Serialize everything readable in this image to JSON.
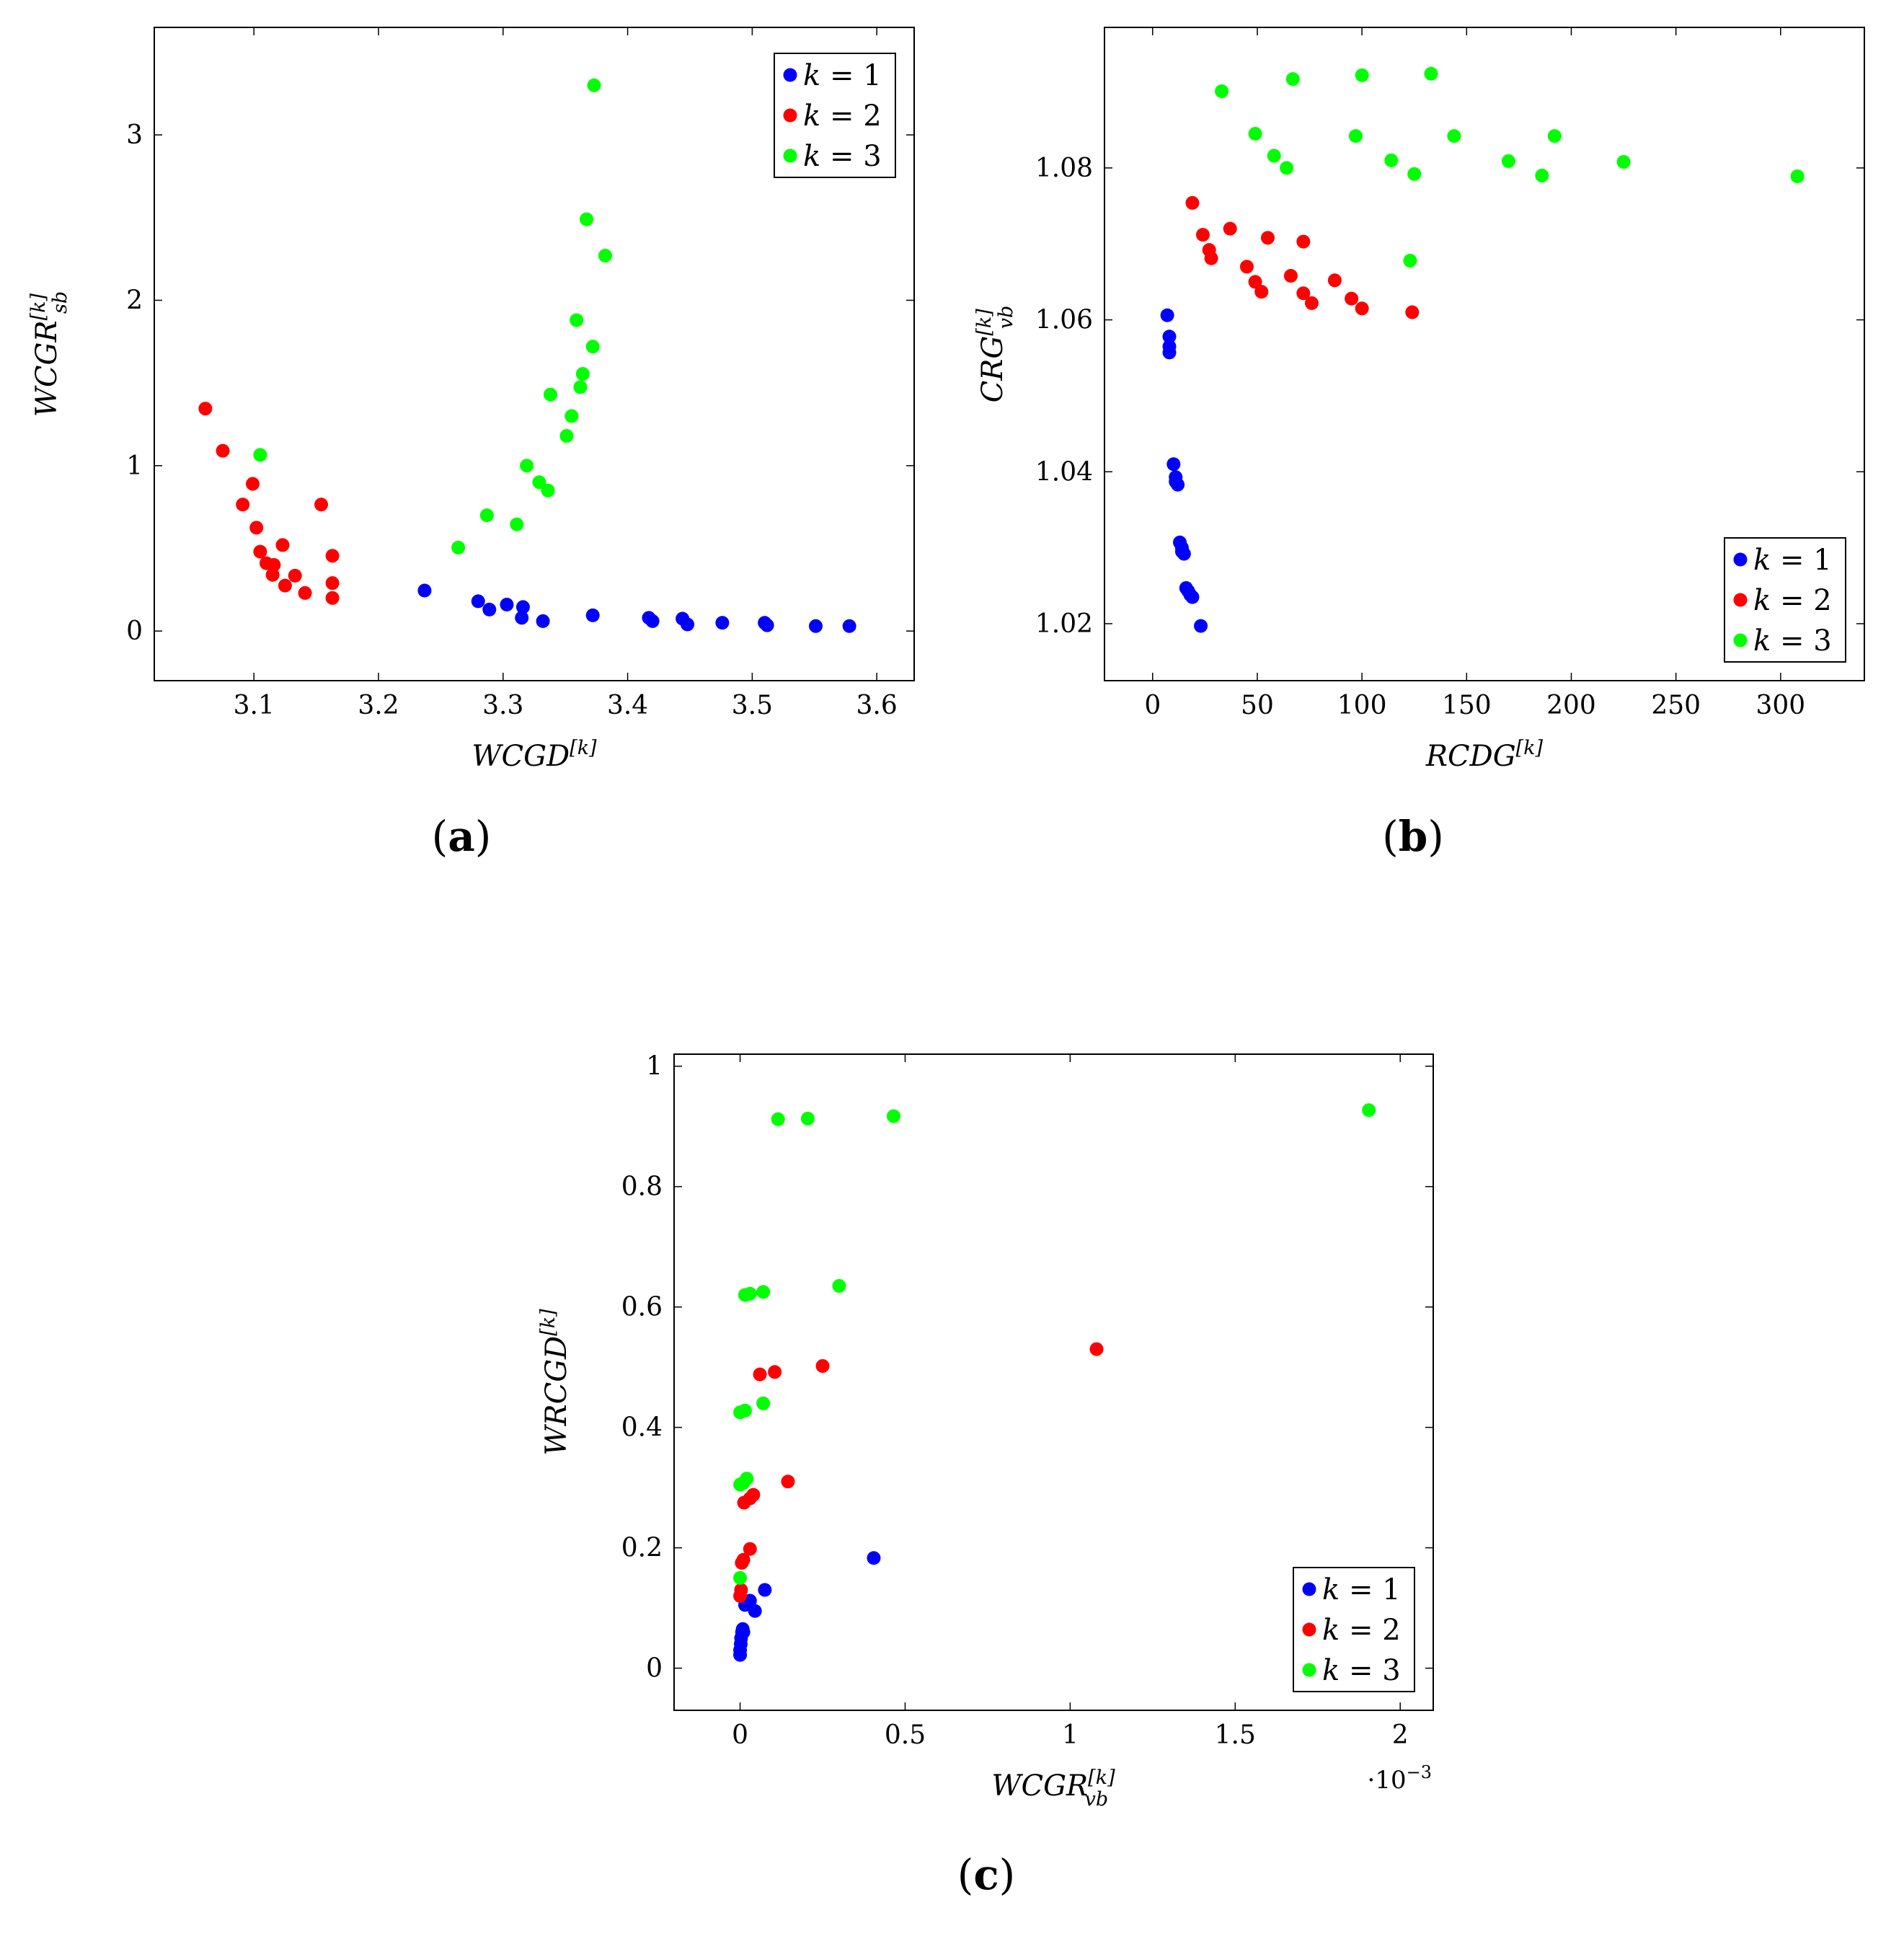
{
  "colors": {
    "k1": "#0000ff",
    "k2": "#ff0000",
    "k3": "#00ff00"
  },
  "legend": {
    "var": "k",
    "entries": [
      {
        "label": "k = 1",
        "value": "1",
        "color": "#0000ff"
      },
      {
        "label": "k = 2",
        "value": "2",
        "color": "#ff0000"
      },
      {
        "label": "k = 3",
        "value": "3",
        "color": "#00ff00"
      }
    ]
  },
  "chart_data": [
    {
      "id": "a",
      "type": "scatter",
      "caption": "(a)",
      "caption_letter": "a",
      "xlabel": {
        "main": "WCGD",
        "sup": "[k]"
      },
      "ylabel": {
        "main": "WCGR",
        "sup": "[k]",
        "sub": "sb"
      },
      "xlim": [
        3.02,
        3.63
      ],
      "ylim": [
        -0.3,
        3.65
      ],
      "xticks": [
        3.1,
        3.2,
        3.3,
        3.4,
        3.5,
        3.6
      ],
      "xtick_labels": [
        "3.1",
        "3.2",
        "3.3",
        "3.4",
        "3.5",
        "3.6"
      ],
      "yticks": [
        0,
        1,
        2,
        3
      ],
      "ytick_labels": [
        "0",
        "1",
        "2",
        "3"
      ],
      "legend_position": "top-right",
      "series": [
        {
          "name": "k = 1",
          "color": "#0000ff",
          "points": [
            [
              3.237,
              0.245
            ],
            [
              3.28,
              0.18
            ],
            [
              3.289,
              0.13
            ],
            [
              3.303,
              0.16
            ],
            [
              3.316,
              0.145
            ],
            [
              3.315,
              0.08
            ],
            [
              3.332,
              0.06
            ],
            [
              3.372,
              0.095
            ],
            [
              3.417,
              0.08
            ],
            [
              3.42,
              0.06
            ],
            [
              3.444,
              0.075
            ],
            [
              3.448,
              0.04
            ],
            [
              3.476,
              0.05
            ],
            [
              3.51,
              0.05
            ],
            [
              3.512,
              0.035
            ],
            [
              3.551,
              0.03
            ],
            [
              3.578,
              0.03
            ]
          ]
        },
        {
          "name": "k = 2",
          "color": "#ff0000",
          "points": [
            [
              3.061,
              1.345
            ],
            [
              3.075,
              1.09
            ],
            [
              3.091,
              0.765
            ],
            [
              3.099,
              0.89
            ],
            [
              3.102,
              0.625
            ],
            [
              3.105,
              0.48
            ],
            [
              3.11,
              0.41
            ],
            [
              3.116,
              0.4
            ],
            [
              3.115,
              0.34
            ],
            [
              3.123,
              0.52
            ],
            [
              3.125,
              0.275
            ],
            [
              3.133,
              0.335
            ],
            [
              3.141,
              0.23
            ],
            [
              3.154,
              0.765
            ],
            [
              3.163,
              0.455
            ],
            [
              3.163,
              0.29
            ],
            [
              3.163,
              0.2
            ]
          ]
        },
        {
          "name": "k = 3",
          "color": "#00ff00",
          "points": [
            [
              3.105,
              1.065
            ],
            [
              3.264,
              0.505
            ],
            [
              3.287,
              0.7
            ],
            [
              3.311,
              0.645
            ],
            [
              3.319,
              1.0
            ],
            [
              3.329,
              0.9
            ],
            [
              3.336,
              0.85
            ],
            [
              3.338,
              1.43
            ],
            [
              3.351,
              1.18
            ],
            [
              3.355,
              1.3
            ],
            [
              3.359,
              1.88
            ],
            [
              3.362,
              1.475
            ],
            [
              3.364,
              1.555
            ],
            [
              3.367,
              2.49
            ],
            [
              3.372,
              1.72
            ],
            [
              3.382,
              2.27
            ],
            [
              3.373,
              3.3
            ]
          ]
        }
      ]
    },
    {
      "id": "b",
      "type": "scatter",
      "caption": "(b)",
      "caption_letter": "b",
      "xlabel": {
        "main": "RCDG",
        "sup": "[k]"
      },
      "ylabel": {
        "main": "CRG",
        "sup": "[k]",
        "sub": "vb"
      },
      "xlim": [
        -23,
        340
      ],
      "ylim": [
        1.0125,
        1.0985
      ],
      "xticks": [
        0,
        50,
        100,
        150,
        200,
        250,
        300
      ],
      "xtick_labels": [
        "0",
        "50",
        "100",
        "150",
        "200",
        "250",
        "300"
      ],
      "yticks": [
        1.02,
        1.04,
        1.06,
        1.08
      ],
      "ytick_labels": [
        "1.02",
        "1.04",
        "1.06",
        "1.08"
      ],
      "legend_position": "bottom-right",
      "series": [
        {
          "name": "k = 1",
          "color": "#0000ff",
          "points": [
            [
              7,
              1.0606
            ],
            [
              8,
              1.0578
            ],
            [
              8,
              1.0565
            ],
            [
              8,
              1.0557
            ],
            [
              10,
              1.041
            ],
            [
              11,
              1.0393
            ],
            [
              11,
              1.0387
            ],
            [
              12,
              1.0383
            ],
            [
              13,
              1.0307
            ],
            [
              14,
              1.03
            ],
            [
              14,
              1.0295
            ],
            [
              15,
              1.0292
            ],
            [
              16,
              1.0247
            ],
            [
              17,
              1.0243
            ],
            [
              18,
              1.0238
            ],
            [
              19,
              1.0235
            ],
            [
              23,
              1.0197
            ]
          ]
        },
        {
          "name": "k = 2",
          "color": "#ff0000",
          "points": [
            [
              19,
              1.0754
            ],
            [
              24,
              1.0712
            ],
            [
              27,
              1.0692
            ],
            [
              28,
              1.0681
            ],
            [
              37,
              1.072
            ],
            [
              45,
              1.067
            ],
            [
              49,
              1.065
            ],
            [
              52,
              1.0637
            ],
            [
              55,
              1.0708
            ],
            [
              66,
              1.0658
            ],
            [
              72,
              1.0703
            ],
            [
              72,
              1.0635
            ],
            [
              76,
              1.0622
            ],
            [
              87,
              1.0652
            ],
            [
              95,
              1.0628
            ],
            [
              100,
              1.0615
            ],
            [
              124,
              1.061
            ]
          ]
        },
        {
          "name": "k = 3",
          "color": "#00ff00",
          "points": [
            [
              33,
              1.0901
            ],
            [
              49,
              1.0845
            ],
            [
              58,
              1.0816
            ],
            [
              64,
              1.08
            ],
            [
              67,
              1.0917
            ],
            [
              97,
              1.0842
            ],
            [
              100,
              1.0922
            ],
            [
              114,
              1.081
            ],
            [
              123,
              1.0678
            ],
            [
              125,
              1.0792
            ],
            [
              133,
              1.0924
            ],
            [
              144,
              1.0842
            ],
            [
              170,
              1.0809
            ],
            [
              186,
              1.079
            ],
            [
              192,
              1.0842
            ],
            [
              225,
              1.0808
            ],
            [
              308,
              1.0789
            ]
          ]
        }
      ]
    },
    {
      "id": "c",
      "type": "scatter",
      "caption": "(c)",
      "caption_letter": "c",
      "xlabel": {
        "main": "WCGR",
        "sup": "[k]",
        "sub": "vb"
      },
      "ylabel": {
        "main": "WRCGD",
        "sup": "[k]"
      },
      "x_multiplier": "·10",
      "x_multiplier_exp": "−3",
      "xlim": [
        -0.2,
        2.1
      ],
      "ylim": [
        -0.07,
        1.02
      ],
      "xticks": [
        0,
        0.5,
        1,
        1.5,
        2
      ],
      "xtick_labels": [
        "0",
        "0.5",
        "1",
        "1.5",
        "2"
      ],
      "yticks": [
        0,
        0.2,
        0.4,
        0.6,
        0.8,
        1
      ],
      "ytick_labels": [
        "0",
        "0.2",
        "0.4",
        "0.6",
        "0.8",
        "1"
      ],
      "legend_position": "bottom-right",
      "series": [
        {
          "name": "k = 1",
          "color": "#0000ff",
          "points": [
            [
              0.0,
              0.022
            ],
            [
              0.0,
              0.03
            ],
            [
              0.002,
              0.04
            ],
            [
              0.003,
              0.05
            ],
            [
              0.006,
              0.06
            ],
            [
              0.008,
              0.065
            ],
            [
              0.01,
              0.06
            ],
            [
              0.015,
              0.105
            ],
            [
              0.03,
              0.112
            ],
            [
              0.045,
              0.095
            ],
            [
              0.075,
              0.13
            ],
            [
              0.405,
              0.183
            ]
          ]
        },
        {
          "name": "k = 2",
          "color": "#ff0000",
          "points": [
            [
              0.0,
              0.12
            ],
            [
              0.003,
              0.13
            ],
            [
              0.005,
              0.175
            ],
            [
              0.01,
              0.18
            ],
            [
              0.012,
              0.275
            ],
            [
              0.03,
              0.198
            ],
            [
              0.03,
              0.282
            ],
            [
              0.04,
              0.288
            ],
            [
              0.06,
              0.488
            ],
            [
              0.105,
              0.492
            ],
            [
              0.145,
              0.31
            ],
            [
              0.25,
              0.502
            ],
            [
              1.08,
              0.53
            ]
          ]
        },
        {
          "name": "k = 3",
          "color": "#00ff00",
          "points": [
            [
              0.0,
              0.15
            ],
            [
              0.0,
              0.305
            ],
            [
              0.01,
              0.308
            ],
            [
              0.02,
              0.315
            ],
            [
              0.0,
              0.425
            ],
            [
              0.015,
              0.428
            ],
            [
              0.07,
              0.44
            ],
            [
              0.015,
              0.62
            ],
            [
              0.03,
              0.622
            ],
            [
              0.07,
              0.625
            ],
            [
              0.3,
              0.635
            ],
            [
              0.115,
              0.912
            ],
            [
              0.205,
              0.913
            ],
            [
              0.465,
              0.917
            ],
            [
              1.905,
              0.927
            ]
          ]
        }
      ]
    }
  ]
}
